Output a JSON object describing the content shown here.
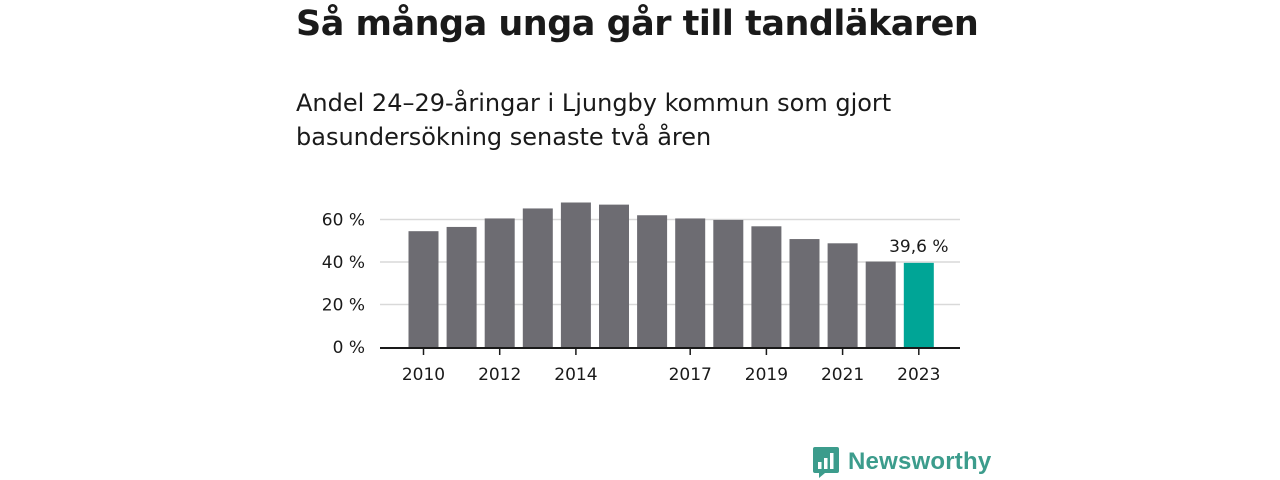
{
  "title": "Så många unga går till tandläkaren",
  "subtitle": "Andel 24–29-åringar i Ljungby kommun som gjort basundersökning senaste två åren",
  "brand": {
    "name": "Newsworthy",
    "icon": "newsworthy-logo-icon",
    "color": "#3c9c8c"
  },
  "chart_data": {
    "type": "bar",
    "categories": [
      "2010",
      "2011",
      "2012",
      "2013",
      "2014",
      "2015",
      "2016",
      "2017",
      "2018",
      "2019",
      "2020",
      "2021",
      "2022",
      "2023"
    ],
    "values": [
      54.5,
      56.5,
      60.5,
      65.2,
      68,
      67,
      62,
      60.5,
      59.8,
      56.8,
      50.8,
      48.8,
      40.2,
      39.6
    ],
    "x_tick_labels": [
      "2010",
      "",
      "2012",
      "",
      "2014",
      "",
      "",
      "2017",
      "",
      "2019",
      "",
      "2021",
      "",
      "2023"
    ],
    "y_ticks": [
      0,
      20,
      40,
      60
    ],
    "y_tick_labels": [
      "0 %",
      "20 %",
      "40 %",
      "60 %"
    ],
    "ylim": [
      0,
      65
    ],
    "highlight_index": 13,
    "highlight_label": "39,6 %",
    "colors": {
      "bar": "#6d6c72",
      "highlight": "#00a596",
      "grid": "#d9d9d9",
      "axis": "#1a1a1a"
    },
    "grid": true,
    "xlabel": "",
    "ylabel": ""
  }
}
